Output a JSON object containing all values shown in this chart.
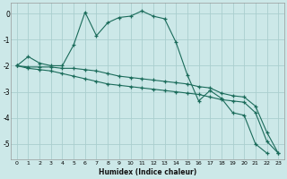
{
  "xlabel": "Humidex (Indice chaleur)",
  "background_color": "#cce8e8",
  "grid_color": "#aacece",
  "line_color": "#1a6b5a",
  "xlim": [
    -0.5,
    23.5
  ],
  "ylim": [
    -5.6,
    0.4
  ],
  "yticks": [
    0,
    -1,
    -2,
    -3,
    -4,
    -5
  ],
  "xticks": [
    0,
    1,
    2,
    3,
    4,
    5,
    6,
    7,
    8,
    9,
    10,
    11,
    12,
    13,
    14,
    15,
    16,
    17,
    18,
    19,
    20,
    21,
    22,
    23
  ],
  "line1_x": [
    0,
    1,
    2,
    3,
    4,
    5,
    6,
    7,
    8,
    9,
    10,
    11,
    12,
    13,
    14,
    15,
    16,
    17,
    18,
    19,
    20,
    21,
    22
  ],
  "line1_y": [
    -2.0,
    -1.65,
    -1.9,
    -2.0,
    -2.0,
    -1.2,
    0.05,
    -0.85,
    -0.35,
    -0.15,
    -0.1,
    0.1,
    -0.1,
    -0.2,
    -1.1,
    -2.35,
    -3.35,
    -2.95,
    -3.25,
    -3.8,
    -3.9,
    -5.0,
    -5.35
  ],
  "line2_x": [
    0,
    1,
    2,
    3,
    4,
    5,
    6,
    7,
    8,
    9,
    10,
    11,
    12,
    13,
    14,
    15,
    16,
    17,
    18,
    19,
    20,
    21,
    22,
    23
  ],
  "line2_y": [
    -2.0,
    -2.05,
    -2.05,
    -2.05,
    -2.1,
    -2.1,
    -2.15,
    -2.2,
    -2.3,
    -2.4,
    -2.45,
    -2.5,
    -2.55,
    -2.6,
    -2.65,
    -2.7,
    -2.8,
    -2.85,
    -3.05,
    -3.15,
    -3.2,
    -3.55,
    -4.55,
    -5.35
  ],
  "line3_x": [
    0,
    1,
    2,
    3,
    4,
    5,
    6,
    7,
    8,
    9,
    10,
    11,
    12,
    13,
    14,
    15,
    16,
    17,
    18,
    19,
    20,
    21,
    22,
    23
  ],
  "line3_y": [
    -2.0,
    -2.1,
    -2.15,
    -2.2,
    -2.3,
    -2.4,
    -2.5,
    -2.6,
    -2.7,
    -2.75,
    -2.8,
    -2.85,
    -2.9,
    -2.95,
    -3.0,
    -3.05,
    -3.1,
    -3.2,
    -3.3,
    -3.35,
    -3.4,
    -3.8,
    -4.9,
    -5.35
  ]
}
